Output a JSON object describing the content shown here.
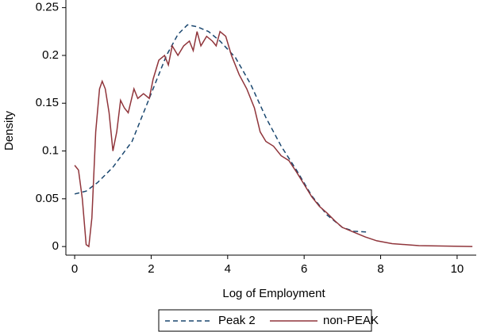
{
  "chart_data": {
    "type": "line",
    "xlabel": "Log of Employment",
    "ylabel": "Density",
    "xlim": [
      -0.23,
      10.5
    ],
    "ylim": [
      -0.009,
      0.258
    ],
    "xticks": [
      0,
      2,
      4,
      6,
      8,
      10
    ],
    "yticks": [
      0,
      0.05,
      0.1,
      0.15,
      0.2,
      0.25
    ],
    "grid": false,
    "legend": "bottom",
    "series": [
      {
        "name": "Peak 2",
        "color": "#1a476f",
        "dashed": true,
        "x": [
          0,
          0.3,
          0.6,
          1.0,
          1.5,
          1.8,
          2.1,
          2.4,
          2.7,
          2.95,
          3.2,
          3.5,
          3.8,
          4.2,
          4.6,
          5.0,
          5.4,
          5.8,
          6.2,
          6.6,
          7.0,
          7.3,
          7.7
        ],
        "values": [
          0.055,
          0.058,
          0.067,
          0.083,
          0.11,
          0.14,
          0.17,
          0.2,
          0.222,
          0.232,
          0.23,
          0.225,
          0.215,
          0.198,
          0.17,
          0.135,
          0.105,
          0.08,
          0.053,
          0.033,
          0.02,
          0.016,
          0.015
        ]
      },
      {
        "name": "non-PEAK",
        "color": "#90353b",
        "dashed": false,
        "x": [
          0,
          0.1,
          0.2,
          0.3,
          0.37,
          0.45,
          0.55,
          0.65,
          0.72,
          0.8,
          0.9,
          1.0,
          1.1,
          1.2,
          1.3,
          1.4,
          1.55,
          1.65,
          1.8,
          1.95,
          2.05,
          2.2,
          2.35,
          2.45,
          2.55,
          2.7,
          2.85,
          3.0,
          3.1,
          3.2,
          3.3,
          3.45,
          3.6,
          3.7,
          3.8,
          3.95,
          4.1,
          4.3,
          4.5,
          4.7,
          4.85,
          5.0,
          5.2,
          5.4,
          5.6,
          5.8,
          6.0,
          6.2,
          6.4,
          6.6,
          6.8,
          7.0,
          7.3,
          7.6,
          7.9,
          8.3,
          9.0,
          10.4
        ],
        "values": [
          0.085,
          0.08,
          0.05,
          0.002,
          0.0,
          0.03,
          0.12,
          0.165,
          0.173,
          0.165,
          0.14,
          0.1,
          0.12,
          0.153,
          0.145,
          0.14,
          0.165,
          0.155,
          0.16,
          0.155,
          0.175,
          0.195,
          0.2,
          0.19,
          0.21,
          0.2,
          0.21,
          0.215,
          0.205,
          0.225,
          0.21,
          0.22,
          0.215,
          0.21,
          0.225,
          0.22,
          0.2,
          0.18,
          0.165,
          0.145,
          0.12,
          0.11,
          0.105,
          0.095,
          0.09,
          0.078,
          0.065,
          0.052,
          0.042,
          0.035,
          0.027,
          0.02,
          0.015,
          0.01,
          0.006,
          0.003,
          0.001,
          0.0
        ]
      }
    ]
  }
}
